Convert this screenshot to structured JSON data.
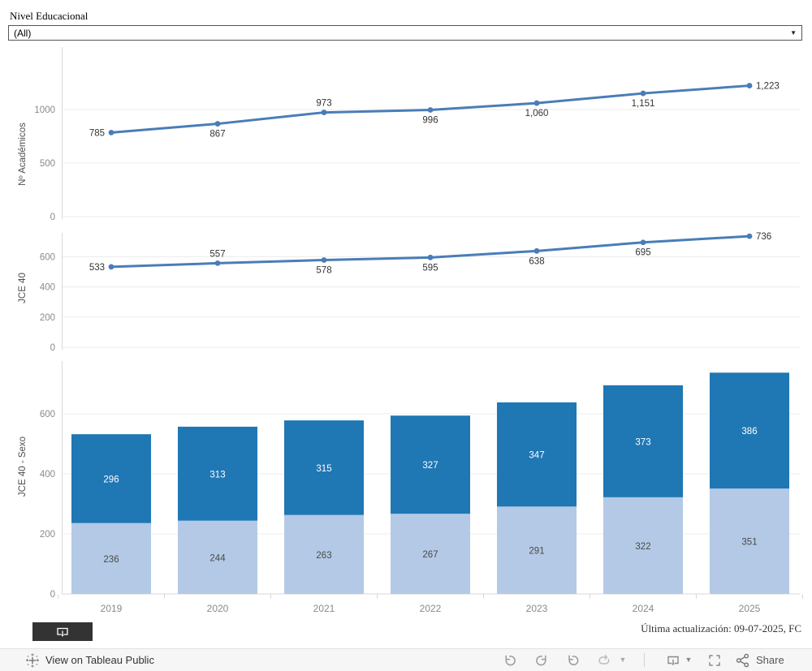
{
  "filter": {
    "label": "Nivel Educacional",
    "value": "(All)"
  },
  "update_note": "Última actualización: 09-07-2025, FC",
  "footer": {
    "view_text": "View on Tableau Public",
    "share_label": "Share"
  },
  "colors": {
    "line": "#4a7db7",
    "bar_dark": "#1f77b4",
    "bar_light": "#b4c9e5",
    "grid": "#ececec",
    "axis": "#d9d9d9",
    "tick_text": "#8a8a8a",
    "data_label": "#333333",
    "axis_title": "#4e4e4e",
    "bar_label_light": "#4a4a4a",
    "bar_label_dark": "#ffffff"
  },
  "chart_data": [
    {
      "type": "line",
      "title": "Nº Académicos",
      "x": [
        "2019",
        "2020",
        "2021",
        "2022",
        "2023",
        "2024",
        "2025"
      ],
      "values": [
        785,
        867,
        973,
        996,
        1060,
        1151,
        1223
      ],
      "labels": [
        "785",
        "867",
        "973",
        "996",
        "1,060",
        "1,151",
        "1,223"
      ],
      "label_pos": [
        "left",
        "below",
        "above",
        "below",
        "below",
        "below",
        "right"
      ],
      "yticks": [
        0,
        500,
        1000
      ],
      "ylim": [
        0,
        1300
      ],
      "grid": true,
      "legend": "none"
    },
    {
      "type": "line",
      "title": "JCE 40",
      "x": [
        "2019",
        "2020",
        "2021",
        "2022",
        "2023",
        "2024",
        "2025"
      ],
      "values": [
        533,
        557,
        578,
        595,
        638,
        695,
        736
      ],
      "labels": [
        "533",
        "557",
        "578",
        "595",
        "638",
        "695",
        "736"
      ],
      "label_pos": [
        "left",
        "above",
        "below",
        "below",
        "below",
        "below",
        "right"
      ],
      "yticks": [
        0,
        200,
        400,
        600
      ],
      "ylim": [
        0,
        780
      ],
      "grid": true,
      "legend": "none"
    },
    {
      "type": "bar",
      "title": "JCE 40 - Sexo",
      "stacked": true,
      "categories": [
        "2019",
        "2020",
        "2021",
        "2022",
        "2023",
        "2024",
        "2025"
      ],
      "series": [
        {
          "name": "bottom",
          "values": [
            236,
            244,
            263,
            267,
            291,
            322,
            351
          ],
          "labels": [
            "236",
            "244",
            "263",
            "267",
            "291",
            "322",
            "351"
          ]
        },
        {
          "name": "top",
          "values": [
            296,
            313,
            315,
            327,
            347,
            373,
            386
          ],
          "labels": [
            "296",
            "313",
            "315",
            "327",
            "347",
            "373",
            "386"
          ]
        }
      ],
      "yticks": [
        0,
        200,
        400,
        600
      ],
      "ylim": [
        0,
        760
      ],
      "grid": true,
      "legend": "none"
    }
  ]
}
